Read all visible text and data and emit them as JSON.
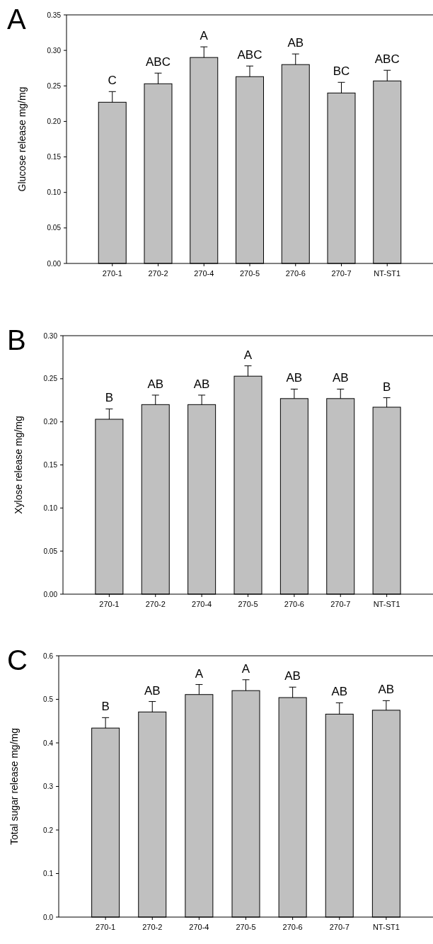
{
  "chart_data": [
    {
      "type": "bar",
      "title": "A",
      "ylabel": "Glucose release mg/mg",
      "categories": [
        "270-1",
        "270-2",
        "270-4",
        "270-5",
        "270-6",
        "270-7",
        "NT-ST1"
      ],
      "values": [
        0.227,
        0.253,
        0.29,
        0.263,
        0.28,
        0.24,
        0.257
      ],
      "color": "#c0c0c0",
      "errors": [
        [
          0.227,
          0.242
        ],
        [
          0.253,
          0.268
        ],
        [
          0.29,
          0.305
        ],
        [
          0.263,
          0.278
        ],
        [
          0.28,
          0.295
        ],
        [
          0.24,
          0.255
        ],
        [
          0.257,
          0.272
        ]
      ],
      "ylim": [
        0,
        0.35
      ],
      "yticks": [
        {
          "value": 0,
          "label": "0.00"
        },
        0.05,
        {
          "value": 0.1,
          "label": "0.10"
        },
        0.15,
        {
          "value": 0.2,
          "label": "0.20"
        },
        0.25,
        {
          "value": 0.3,
          "label": "0.30"
        },
        0.35
      ],
      "annotations": [
        {
          "text": "C",
          "x": "270-1",
          "y": 0.242
        },
        {
          "text": "ABC",
          "x": "270-2",
          "y": 0.268
        },
        {
          "text": "A",
          "x": "270-4",
          "y": 0.305
        },
        {
          "text": "ABC",
          "x": "270-5",
          "y": 0.278
        },
        {
          "text": "AB",
          "x": "270-6",
          "y": 0.295
        },
        {
          "text": "BC",
          "x": "270-7",
          "y": 0.255
        },
        {
          "text": "ABC",
          "x": "NT-ST1",
          "y": 0.272
        }
      ]
    },
    {
      "type": "bar",
      "title": "B",
      "ylabel": "Xylose release mg/mg",
      "categories": [
        "270-1",
        "270-2",
        "270-4",
        "270-5",
        "270-6",
        "270-7",
        "NT-ST1"
      ],
      "values": [
        0.203,
        0.22,
        0.22,
        0.253,
        0.227,
        0.227,
        0.217
      ],
      "color": "#c0c0c0",
      "errors": [
        [
          0.203,
          0.215
        ],
        [
          0.22,
          0.231
        ],
        [
          0.22,
          0.231
        ],
        [
          0.253,
          0.265
        ],
        [
          0.227,
          0.238
        ],
        [
          0.227,
          0.238
        ],
        [
          0.217,
          0.228
        ]
      ],
      "ylim": [
        0,
        0.3
      ],
      "yticks": [
        {
          "value": 0,
          "label": "0.00"
        },
        0.05,
        {
          "value": 0.1,
          "label": "0.10"
        },
        0.15,
        {
          "value": 0.2,
          "label": "0.20"
        },
        0.25,
        {
          "value": 0.3,
          "label": "0.30"
        }
      ],
      "annotations": [
        {
          "text": "B",
          "x": "270-1",
          "y": 0.215
        },
        {
          "text": "AB",
          "x": "270-2",
          "y": 0.231
        },
        {
          "text": "AB",
          "x": "270-4",
          "y": 0.231
        },
        {
          "text": "A",
          "x": "270-5",
          "y": 0.265
        },
        {
          "text": "AB",
          "x": "270-6",
          "y": 0.238
        },
        {
          "text": "AB",
          "x": "270-7",
          "y": 0.238
        },
        {
          "text": "B",
          "x": "NT-ST1",
          "y": 0.228
        }
      ]
    },
    {
      "type": "bar",
      "title": "C",
      "ylabel": "Total sugar release mg/mg",
      "categories": [
        "270-1",
        "270-2",
        "270-4",
        "270-5",
        "270-6",
        "270-7",
        "NT-ST1"
      ],
      "values": [
        0.434,
        0.471,
        0.511,
        0.52,
        0.504,
        0.466,
        0.475
      ],
      "color": "#c0c0c0",
      "errors": [
        [
          0.434,
          0.458
        ],
        [
          0.471,
          0.495
        ],
        [
          0.511,
          0.534
        ],
        [
          0.52,
          0.545
        ],
        [
          0.504,
          0.528
        ],
        [
          0.466,
          0.492
        ],
        [
          0.475,
          0.497
        ]
      ],
      "ylim": [
        0,
        0.6
      ],
      "yticks": [
        {
          "value": 0,
          "label": "0.0"
        },
        0.1,
        0.2,
        0.3,
        0.4,
        0.5,
        0.6
      ],
      "annotations": [
        {
          "text": "B",
          "x": "270-1",
          "y": 0.458
        },
        {
          "text": "AB",
          "x": "270-2",
          "y": 0.495
        },
        {
          "text": "A",
          "x": "270-4",
          "y": 0.534
        },
        {
          "text": "A",
          "x": "270-5",
          "y": 0.545
        },
        {
          "text": "AB",
          "x": "270-6",
          "y": 0.528
        },
        {
          "text": "AB",
          "x": "270-7",
          "y": 0.492
        },
        {
          "text": "AB",
          "x": "NT-ST1",
          "y": 0.497
        }
      ]
    }
  ]
}
